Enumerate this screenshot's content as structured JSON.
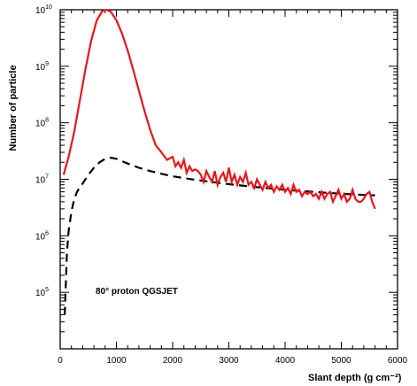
{
  "chart_data": {
    "type": "line",
    "title": "",
    "xlabel": "Slant depth (g cm⁻²)",
    "ylabel": "Number of particle",
    "xlim": [
      0,
      6000
    ],
    "ylim": [
      10000,
      10000000000
    ],
    "yscale": "log",
    "grid": false,
    "x_ticks": [
      0,
      1000,
      2000,
      3000,
      4000,
      5000,
      6000
    ],
    "x_tick_labels": [
      "0",
      "1000",
      "2000",
      "3000",
      "4000",
      "5000",
      "6000"
    ],
    "y_tick_exponents": [
      5,
      6,
      7,
      8,
      9,
      10
    ],
    "y_tick_base": "10",
    "annotation": "80° proton QGSJET",
    "series": [
      {
        "style": "solid",
        "color": "#e8141b",
        "x": [
          60,
          150,
          250,
          350,
          450,
          550,
          650,
          750,
          820,
          900,
          1000,
          1100,
          1200,
          1300,
          1400,
          1500,
          1600,
          1700,
          1800,
          1900,
          2000,
          2050,
          2100,
          2150,
          2200,
          2250,
          2300,
          2350,
          2400,
          2450,
          2500,
          2550,
          2600,
          2650,
          2700,
          2750,
          2800,
          2850,
          2900,
          2950,
          3000,
          3050,
          3100,
          3150,
          3200,
          3250,
          3300,
          3350,
          3400,
          3450,
          3500,
          3550,
          3600,
          3650,
          3700,
          3750,
          3800,
          3850,
          3900,
          3950,
          4000,
          4050,
          4100,
          4150,
          4200,
          4250,
          4300,
          4350,
          4400,
          4450,
          4500,
          4550,
          4600,
          4650,
          4700,
          4750,
          4800,
          4850,
          4900,
          4950,
          5000,
          5050,
          5100,
          5150,
          5200,
          5250,
          5300,
          5350,
          5400,
          5450,
          5500,
          5550,
          5600
        ],
        "y": [
          12000000,
          25000000,
          70000000,
          250000000,
          900000000,
          2800000000,
          6500000000,
          9500000000,
          10000000000,
          9200000000,
          6500000000,
          3800000000,
          1900000000,
          850000000,
          370000000,
          160000000,
          75000000,
          40000000,
          30000000,
          22000000,
          25000000,
          17000000,
          20000000,
          16000000,
          22000000,
          13000000,
          17000000,
          14000000,
          15000000,
          14000000,
          12000000,
          9000000,
          14000000,
          11000000,
          9000000,
          14000000,
          8000000,
          11000000,
          13000000,
          9000000,
          16000000,
          9000000,
          12000000,
          8000000,
          11000000,
          9000000,
          13000000,
          8000000,
          9000000,
          7000000,
          10000000,
          8000000,
          6500000,
          9000000,
          7000000,
          8000000,
          6000000,
          7500000,
          6500000,
          8000000,
          6000000,
          7000000,
          5500000,
          8000000,
          6000000,
          6500000,
          5000000,
          6000000,
          5500000,
          6000000,
          5000000,
          5500000,
          4500000,
          6000000,
          4500000,
          5500000,
          6000000,
          4000000,
          5000000,
          6500000,
          4500000,
          5500000,
          4000000,
          4500000,
          6500000,
          4500000,
          4000000,
          4000000,
          4500000,
          5500000,
          6000000,
          4000000,
          3000000
        ]
      },
      {
        "style": "dashed",
        "color": "#000000",
        "x": [
          80,
          120,
          150,
          200,
          250,
          300,
          350,
          400,
          500,
          600,
          700,
          800,
          900,
          1000,
          1200,
          1400,
          1600,
          1800,
          2000,
          2200,
          2400,
          2600,
          2800,
          3000,
          3200,
          3400,
          3600,
          3800,
          4000,
          4200,
          4400,
          4600,
          4800,
          5000,
          5200,
          5400,
          5600
        ],
        "y": [
          40000,
          500000,
          1200000,
          2700000,
          4500000,
          6000000,
          7200000,
          8400000,
          12000000,
          16000000,
          20000000,
          23000000,
          24000000,
          23000000,
          19000000,
          16000000,
          14000000,
          12500000,
          11300000,
          10500000,
          9800000,
          9200000,
          8700000,
          8200000,
          7800000,
          7400000,
          7100000,
          6800000,
          6500000,
          6300000,
          6100000,
          5900000,
          5700000,
          5600000,
          5400000,
          5300000,
          5200000
        ]
      }
    ]
  }
}
